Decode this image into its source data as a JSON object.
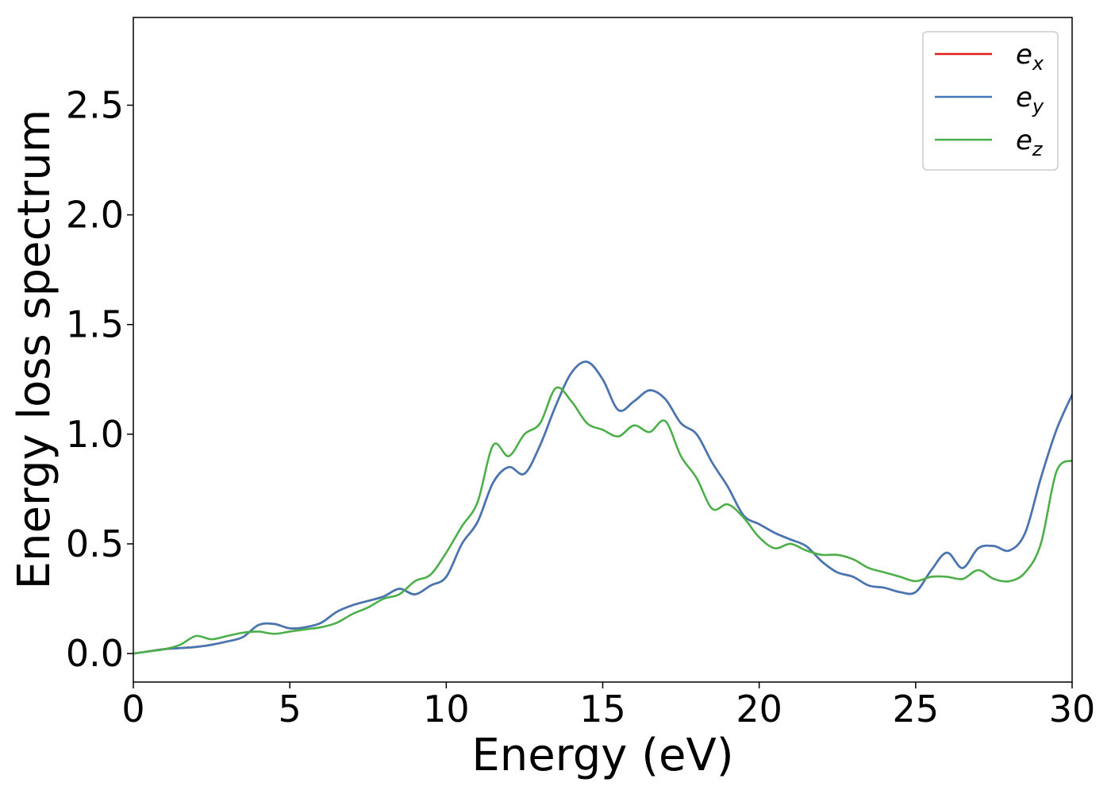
{
  "chart_data": {
    "type": "line",
    "title": "",
    "xlabel": "Energy (eV)",
    "ylabel": "Energy loss spectrum",
    "xlim": [
      0,
      30
    ],
    "ylim": [
      -0.13,
      2.9
    ],
    "xticks": [
      0,
      5,
      10,
      15,
      20,
      25,
      30
    ],
    "xtick_labels": [
      "0",
      "5",
      "10",
      "15",
      "20",
      "25",
      "30"
    ],
    "yticks": [
      0.0,
      0.5,
      1.0,
      1.5,
      2.0,
      2.5
    ],
    "ytick_labels": [
      "0.0",
      "0.5",
      "1.0",
      "1.5",
      "2.0",
      "2.5"
    ],
    "grid": false,
    "legend_position": "top-right",
    "x": [
      0,
      0.5,
      1,
      1.5,
      2,
      2.5,
      3,
      3.5,
      4,
      4.5,
      5,
      5.5,
      6,
      6.5,
      7,
      7.5,
      8,
      8.5,
      9,
      9.5,
      10,
      10.5,
      11,
      11.5,
      12,
      12.5,
      13,
      13.5,
      14,
      14.5,
      15,
      15.5,
      16,
      16.5,
      17,
      17.5,
      18,
      18.5,
      19,
      19.5,
      20,
      20.5,
      21,
      21.5,
      22,
      22.5,
      23,
      23.5,
      24,
      24.5,
      25,
      25.5,
      26,
      26.5,
      27,
      27.5,
      28,
      28.5,
      29,
      29.5,
      30
    ],
    "series": [
      {
        "name_base": "e",
        "name_sub": "x",
        "color": "#e41a1c",
        "values": [
          0.0,
          0.01,
          0.02,
          0.025,
          0.03,
          0.04,
          0.055,
          0.075,
          0.13,
          0.135,
          0.115,
          0.12,
          0.14,
          0.19,
          0.22,
          0.24,
          0.26,
          0.295,
          0.27,
          0.31,
          0.35,
          0.5,
          0.6,
          0.78,
          0.85,
          0.82,
          0.95,
          1.13,
          1.28,
          1.33,
          1.25,
          1.11,
          1.15,
          1.2,
          1.16,
          1.05,
          1.0,
          0.87,
          0.76,
          0.63,
          0.59,
          0.55,
          0.52,
          0.49,
          0.42,
          0.37,
          0.35,
          0.31,
          0.3,
          0.28,
          0.28,
          0.38,
          0.46,
          0.39,
          0.48,
          0.49,
          0.47,
          0.55,
          0.8,
          1.02,
          1.18
        ]
      },
      {
        "name_base": "e",
        "name_sub": "y",
        "color": "#4378b5",
        "values": [
          0.0,
          0.01,
          0.02,
          0.025,
          0.03,
          0.04,
          0.055,
          0.075,
          0.13,
          0.135,
          0.115,
          0.12,
          0.14,
          0.19,
          0.22,
          0.24,
          0.26,
          0.295,
          0.27,
          0.31,
          0.35,
          0.5,
          0.6,
          0.78,
          0.85,
          0.82,
          0.95,
          1.13,
          1.28,
          1.33,
          1.25,
          1.11,
          1.15,
          1.2,
          1.16,
          1.05,
          1.0,
          0.87,
          0.76,
          0.63,
          0.59,
          0.55,
          0.52,
          0.49,
          0.42,
          0.37,
          0.35,
          0.31,
          0.3,
          0.28,
          0.28,
          0.38,
          0.46,
          0.39,
          0.48,
          0.49,
          0.47,
          0.55,
          0.8,
          1.02,
          1.18
        ]
      },
      {
        "name_base": "e",
        "name_sub": "z",
        "color": "#4daf4a",
        "values": [
          0.0,
          0.01,
          0.02,
          0.04,
          0.08,
          0.065,
          0.08,
          0.095,
          0.1,
          0.09,
          0.1,
          0.11,
          0.12,
          0.14,
          0.18,
          0.21,
          0.25,
          0.27,
          0.33,
          0.36,
          0.46,
          0.58,
          0.69,
          0.95,
          0.9,
          1.0,
          1.05,
          1.21,
          1.15,
          1.05,
          1.02,
          0.99,
          1.04,
          1.01,
          1.06,
          0.9,
          0.8,
          0.66,
          0.68,
          0.62,
          0.53,
          0.48,
          0.5,
          0.47,
          0.45,
          0.45,
          0.43,
          0.39,
          0.37,
          0.35,
          0.33,
          0.35,
          0.35,
          0.34,
          0.38,
          0.34,
          0.33,
          0.37,
          0.5,
          0.83,
          0.88
        ]
      }
    ]
  }
}
